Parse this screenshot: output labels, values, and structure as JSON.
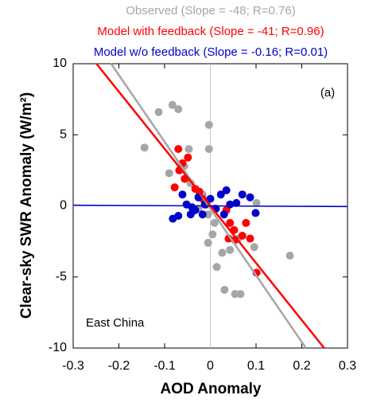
{
  "chart_data": {
    "type": "scatter",
    "xlabel": "AOD Anomaly",
    "ylabel": "Clear-sky SWR Anomaly (W/m²)",
    "annotations": [
      "(a)",
      "East China"
    ],
    "xlim": [
      -0.3,
      0.3
    ],
    "ylim": [
      -10,
      10
    ],
    "xticks": [
      -0.3,
      -0.2,
      -0.1,
      0,
      0.1,
      0.2,
      0.3
    ],
    "yticks": [
      -10,
      -5,
      0,
      5,
      10
    ],
    "zero_lines": true,
    "series": [
      {
        "name": "Observed (Slope = -48; R=0.76)",
        "color": "#a6a6a6",
        "x": [
          -0.144,
          -0.113,
          -0.083,
          -0.07,
          -0.09,
          -0.047,
          -0.003,
          -0.003,
          -0.057,
          -0.043,
          -0.017,
          -0.005,
          0.009,
          0.005,
          -0.005,
          0.014,
          0.031,
          0.054,
          0.066,
          0.043,
          0.026,
          0.096,
          0.101,
          0.174,
          0.061,
          -0.026
        ],
        "values": [
          4.1,
          6.6,
          7.1,
          6.8,
          2.3,
          4.0,
          5.7,
          4.0,
          2.8,
          1.6,
          0.8,
          -0.6,
          -1.2,
          -2.0,
          -2.6,
          -4.3,
          -5.9,
          -6.2,
          -6.2,
          -3.1,
          -3.3,
          -2.9,
          0.2,
          -3.5,
          -2.3,
          -0.2
        ],
        "fit": {
          "x": [
            -0.217,
            0.209
          ],
          "y": [
            10,
            -10
          ]
        }
      },
      {
        "name": "Model with feedback (Slope = -41; R=0.96)",
        "color": "#ff0000",
        "x": [
          -0.068,
          -0.061,
          -0.049,
          -0.07,
          -0.056,
          -0.033,
          -0.024,
          -0.017,
          -0.009,
          0.009,
          0.035,
          0.043,
          0.052,
          0.04,
          0.054,
          0.07,
          0.087,
          0.101,
          0.078,
          -0.078
        ],
        "values": [
          2.5,
          3.0,
          3.4,
          4.0,
          1.9,
          1.2,
          1.0,
          0.5,
          0.1,
          -0.2,
          -0.3,
          -1.2,
          -1.7,
          -2.3,
          -2.4,
          -2.1,
          -2.3,
          -4.7,
          -1.2,
          1.3
        ],
        "fit": {
          "x": [
            -0.249,
            0.249
          ],
          "y": [
            10,
            -10
          ]
        }
      },
      {
        "name": "Model w/o feedback (Slope = -0.16; R=0.01)",
        "color": "#0000cc",
        "x": [
          -0.082,
          -0.07,
          -0.061,
          -0.052,
          -0.043,
          -0.04,
          -0.026,
          -0.012,
          0,
          0.012,
          0.023,
          0.03,
          0.043,
          0.057,
          0.07,
          0.087,
          0.099,
          0.035,
          -0.017,
          -0.033
        ],
        "values": [
          -0.9,
          -0.7,
          0.8,
          0.1,
          -0.6,
          -0.1,
          0.6,
          0.1,
          0.5,
          -0.2,
          0.8,
          -0.6,
          0.1,
          0.2,
          0.8,
          0.6,
          -0.5,
          1.1,
          -0.6,
          -0.3
        ],
        "fit": {
          "x": [
            -0.3,
            0.3
          ],
          "y": [
            0.048,
            -0.048
          ]
        }
      }
    ]
  }
}
